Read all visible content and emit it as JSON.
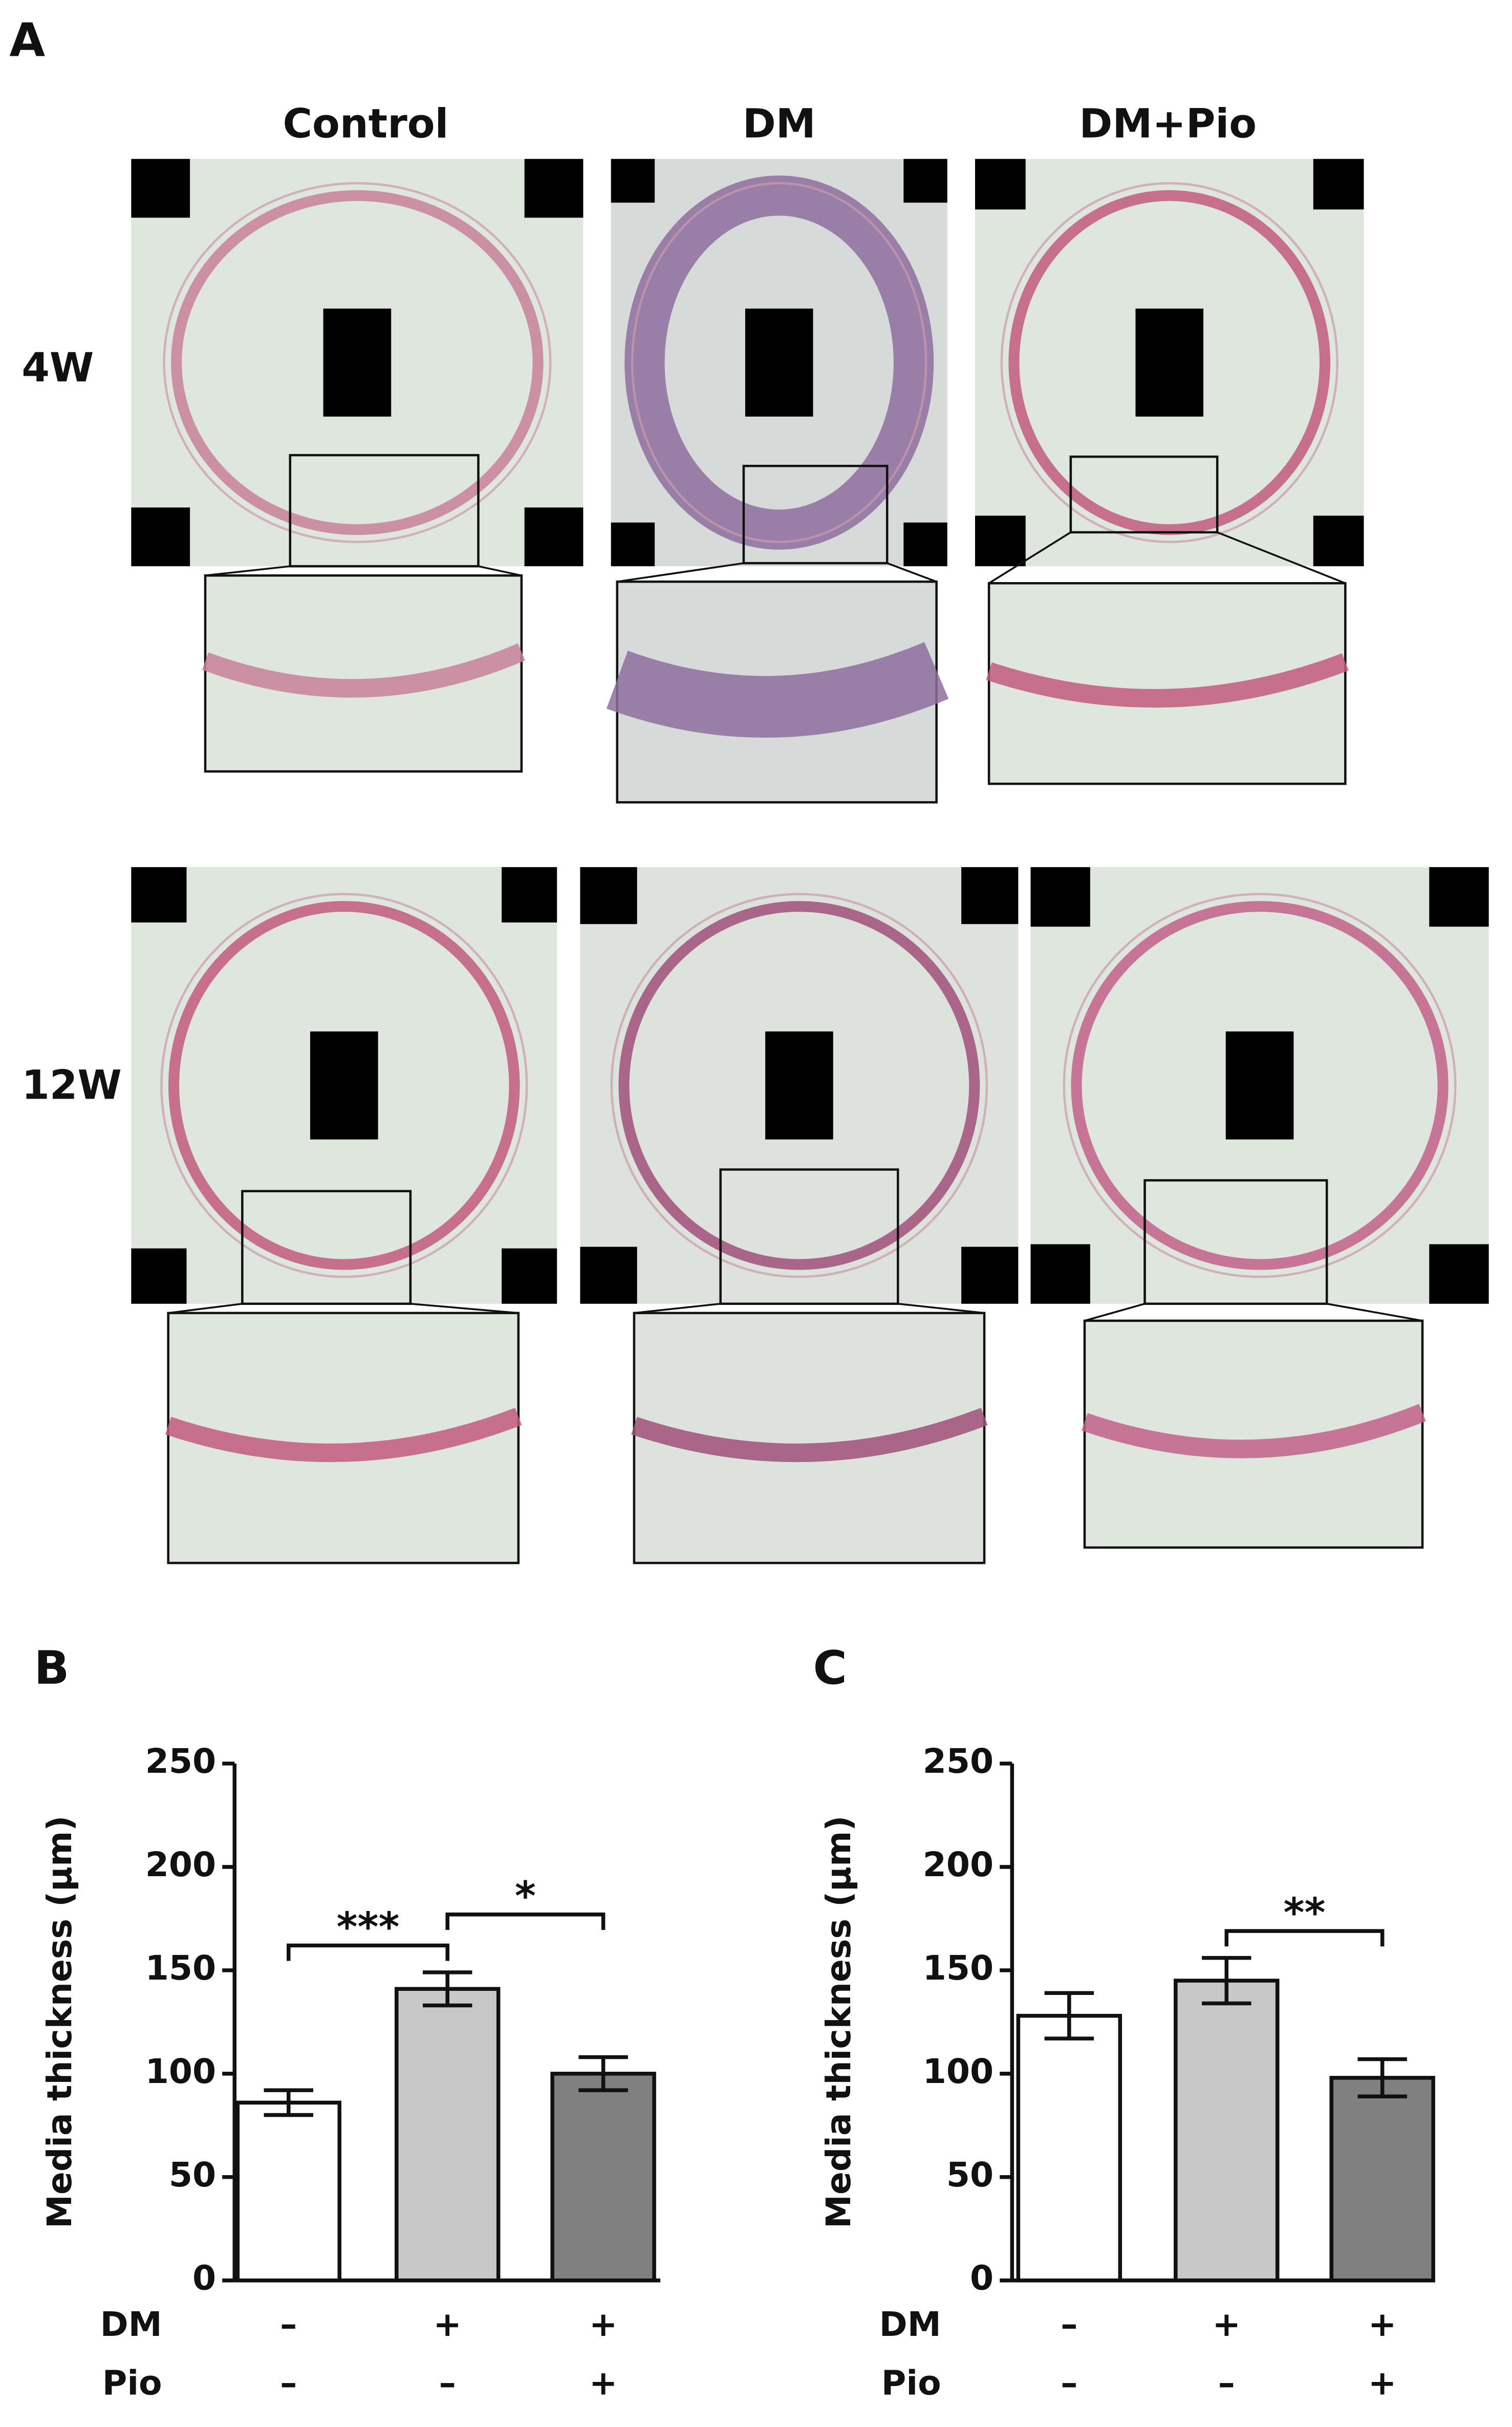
{
  "panel_label": "A",
  "micrographs": {
    "columns": [
      "Control",
      "DM",
      "DM+Pio"
    ],
    "rows": [
      "4W",
      "12W"
    ]
  },
  "chart_data": [
    {
      "type": "bar",
      "panel": "B",
      "ylabel": "Media thickness (µm)",
      "values": [
        86,
        141,
        100
      ],
      "errors": [
        6,
        8,
        8
      ],
      "colors": [
        "#ffffff",
        "#c8c8c8",
        "#808080"
      ],
      "ylim": [
        0,
        250
      ],
      "yticks": [
        0,
        50,
        100,
        150,
        200,
        250
      ],
      "conditions": [
        {
          "name": "DM",
          "marks": [
            "–",
            "+",
            "+"
          ]
        },
        {
          "name": "Pio",
          "marks": [
            "–",
            "–",
            "+"
          ]
        }
      ],
      "significance": [
        {
          "from": 0,
          "to": 1,
          "label": "***"
        },
        {
          "from": 1,
          "to": 2,
          "label": "*"
        }
      ]
    },
    {
      "type": "bar",
      "panel": "C",
      "ylabel": "Media thickness (µm)",
      "values": [
        128,
        145,
        98
      ],
      "errors": [
        11,
        11,
        9
      ],
      "colors": [
        "#ffffff",
        "#c8c8c8",
        "#808080"
      ],
      "ylim": [
        0,
        250
      ],
      "yticks": [
        0,
        50,
        100,
        150,
        200,
        250
      ],
      "conditions": [
        {
          "name": "DM",
          "marks": [
            "–",
            "+",
            "+"
          ]
        },
        {
          "name": "Pio",
          "marks": [
            "–",
            "–",
            "+"
          ]
        }
      ],
      "significance": [
        {
          "from": 1,
          "to": 2,
          "label": "**"
        }
      ]
    }
  ]
}
